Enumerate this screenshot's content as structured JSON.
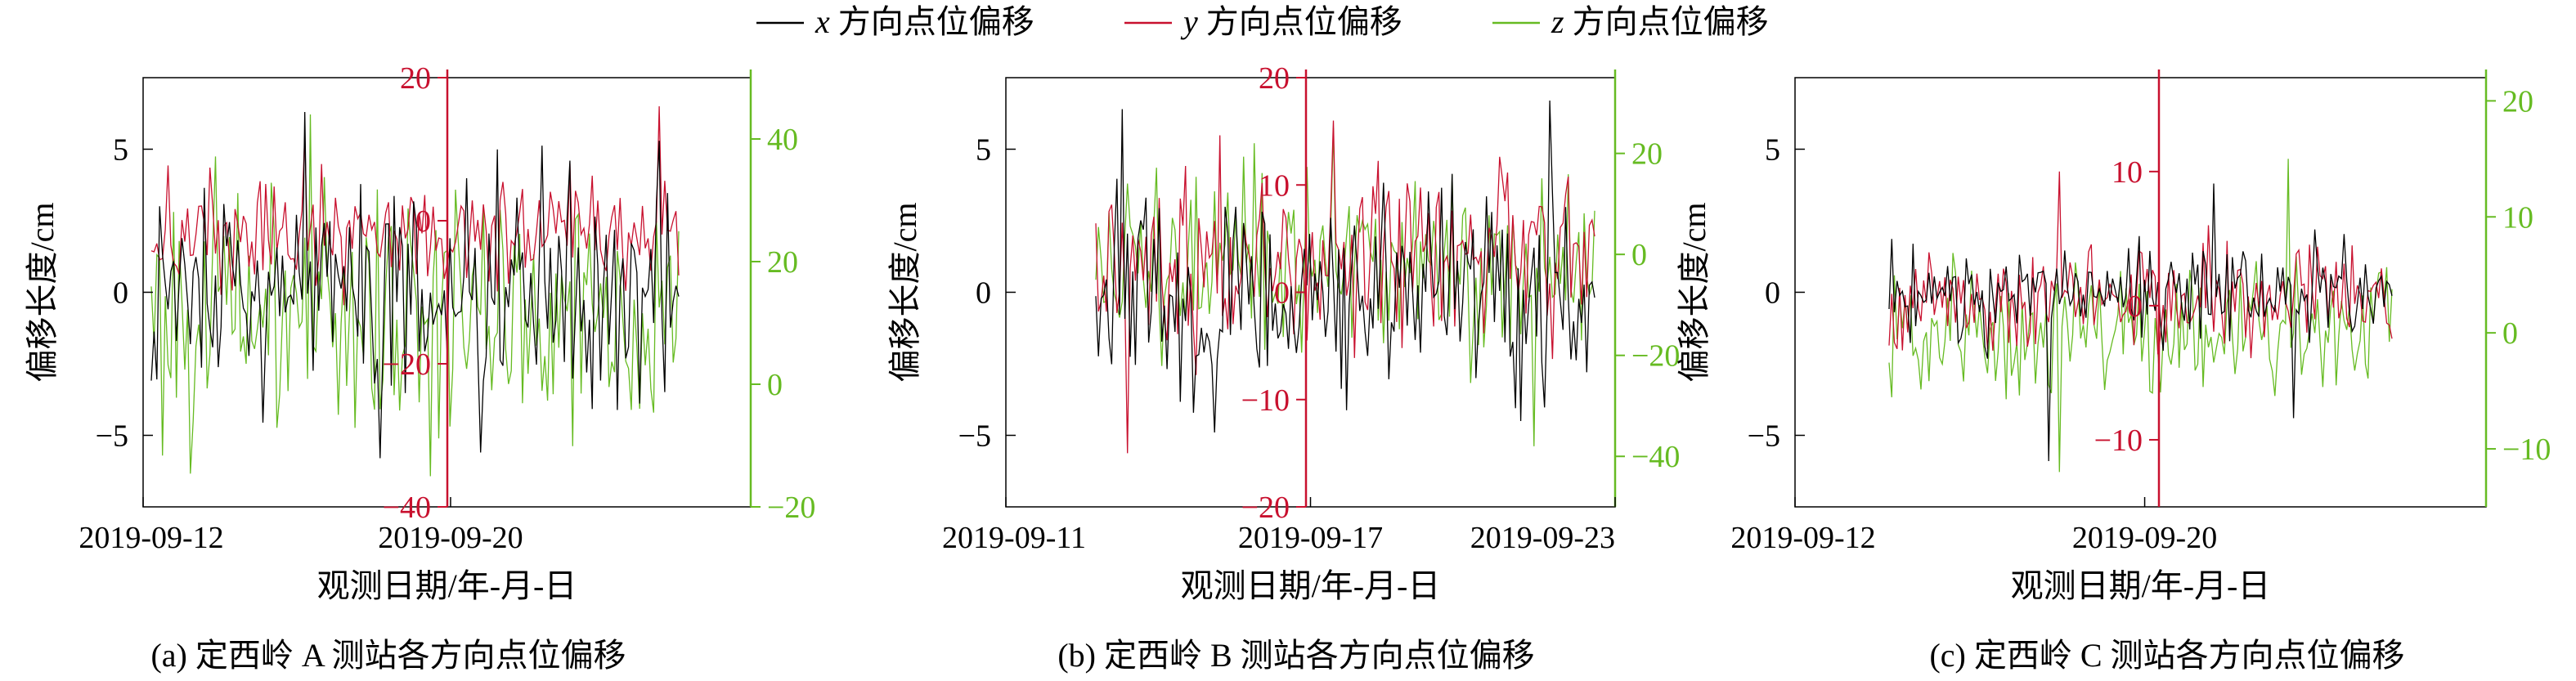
{
  "colors": {
    "x": "#000000",
    "y": "#c8102e",
    "z": "#66bb22",
    "axis": "#000000"
  },
  "legend": {
    "placement": "top-center",
    "entries": [
      {
        "series": "x",
        "var": "x",
        "label": " 方向点位偏移"
      },
      {
        "series": "y",
        "var": "y",
        "label": " 方向点位偏移"
      },
      {
        "series": "z",
        "var": "z",
        "label": " 方向点位偏移"
      }
    ]
  },
  "chart_data": [
    {
      "type": "line",
      "caption": "(a) 定西岭 A 测站各方向点位偏移",
      "xlabel": "观测日期/年-月-日",
      "ylabel": "偏移长度/cm",
      "grid": false,
      "x_ticks": [
        "2019-09-12",
        "2019-09-20"
      ],
      "y_range": [
        -7.5,
        7.5
      ],
      "y_ticks": [
        -5,
        0,
        5
      ],
      "y2_range": [
        -40,
        20
      ],
      "y2_ticks": [
        -40,
        -20,
        0,
        20
      ],
      "y3_range": [
        -20,
        50
      ],
      "y3_ticks": [
        -20,
        0,
        20,
        40
      ],
      "series": [
        {
          "name": "x",
          "amp": 2.6,
          "spikes": [
            {
              "i": 55,
              "v": 6.3
            },
            {
              "i": 82,
              "v": -5.8
            },
            {
              "i": 118,
              "v": -5.6
            },
            {
              "i": 150,
              "v": 4.6
            }
          ]
        },
        {
          "name": "y",
          "axis": "y2",
          "center": -2,
          "amp": 5,
          "spikes": [
            {
              "i": 55,
              "v": 12
            },
            {
              "i": 150,
              "v": 8
            },
            {
              "i": 182,
              "v": 16
            }
          ]
        },
        {
          "name": "z",
          "axis": "y3",
          "center": 12,
          "amp": 13,
          "spikes": [
            {
              "i": 57,
              "v": 44
            },
            {
              "i": 100,
              "v": -15
            }
          ]
        }
      ]
    },
    {
      "type": "line",
      "caption": "(b) 定西岭 B 测站各方向点位偏移",
      "xlabel": "观测日期/年-月-日",
      "ylabel": "偏移长度/cm",
      "grid": false,
      "x_ticks": [
        "2019-09-11",
        "2019-09-17",
        "2019-09-23"
      ],
      "y_range": [
        -7.5,
        7.5
      ],
      "y_ticks": [
        -5,
        0,
        5
      ],
      "y2_range": [
        -20,
        20
      ],
      "y2_ticks": [
        -20,
        -10,
        0,
        10,
        20
      ],
      "y3_range": [
        -50,
        35
      ],
      "y3_ticks": [
        -40,
        -20,
        0,
        20
      ],
      "series": [
        {
          "name": "x",
          "amp": 2.2,
          "spikes": [
            {
              "i": 10,
              "v": 6.4
            },
            {
              "i": 45,
              "v": -4.9
            },
            {
              "i": 172,
              "v": 6.7
            },
            {
              "i": 161,
              "v": -4.5
            }
          ]
        },
        {
          "name": "y",
          "axis": "y2",
          "center": 3,
          "amp": 5,
          "spikes": [
            {
              "i": 12,
              "v": -15
            },
            {
              "i": 90,
              "v": 16
            },
            {
              "i": 168,
              "v": 8
            }
          ]
        },
        {
          "name": "z",
          "axis": "y3",
          "center": -3,
          "amp": 12,
          "spikes": [
            {
              "i": 90,
              "v": 25
            },
            {
              "i": 166,
              "v": -38
            }
          ]
        }
      ]
    },
    {
      "type": "line",
      "caption": "(c) 定西岭 C 测站各方向点位偏移",
      "xlabel": "观测日期/年-月-日",
      "ylabel": "偏移长度/cm",
      "grid": false,
      "x_ticks": [
        "2019-09-12",
        "2019-09-20"
      ],
      "y_range": [
        -7.5,
        7.5
      ],
      "y_ticks": [
        -5,
        0,
        5
      ],
      "y2_range": [
        -15,
        17
      ],
      "y2_ticks": [
        -10,
        0,
        10
      ],
      "y3_range": [
        -15,
        22
      ],
      "y3_ticks": [
        -10,
        0,
        10,
        20
      ],
      "series": [
        {
          "name": "x",
          "amp": 1.1,
          "spikes": [
            {
              "i": 60,
              "v": 4.8
            },
            {
              "i": 60,
              "v": -5.9
            },
            {
              "i": 122,
              "v": 3.8
            },
            {
              "i": 152,
              "v": -4.4
            }
          ]
        },
        {
          "name": "y",
          "axis": "y2",
          "center": 0.5,
          "amp": 2.5,
          "spikes": [
            {
              "i": 64,
              "v": 10
            },
            {
              "i": 120,
              "v": 6
            }
          ]
        },
        {
          "name": "z",
          "axis": "y3",
          "center": 0,
          "amp": 4,
          "spikes": [
            {
              "i": 150,
              "v": 15
            },
            {
              "i": 64,
              "v": -12
            }
          ]
        }
      ]
    }
  ]
}
